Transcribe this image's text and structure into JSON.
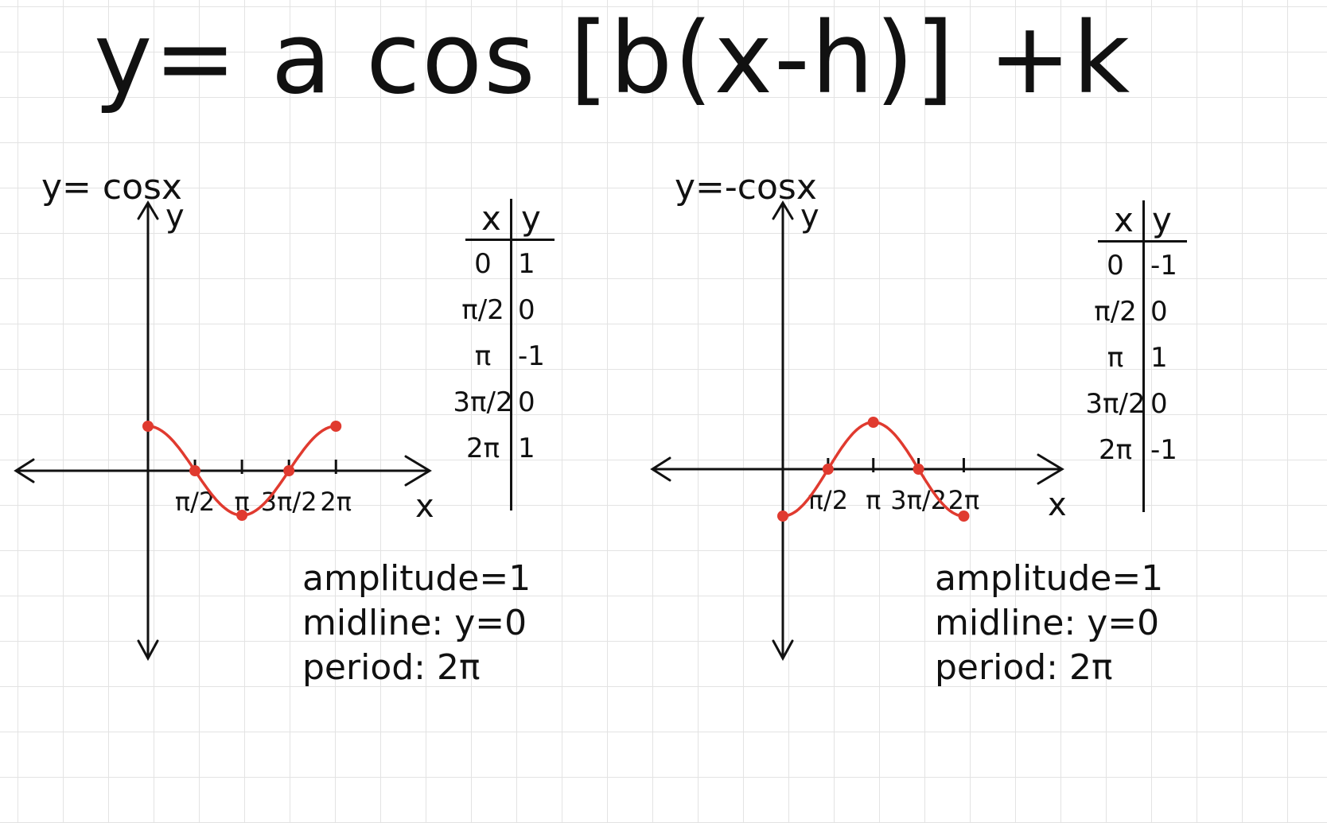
{
  "formula": "y= a cos [b(x-h)] +k",
  "chart_data": [
    {
      "type": "line",
      "title": "y= cosx",
      "xlabel": "x",
      "ylabel": "y",
      "x": [
        0,
        1.5708,
        3.1416,
        4.7124,
        6.2832
      ],
      "x_tick_labels": [
        "π/2",
        "π",
        "3π/2",
        "2π"
      ],
      "series": [
        {
          "values": [
            1,
            0,
            -1,
            0,
            1
          ]
        }
      ],
      "table": {
        "headers": [
          "x",
          "y"
        ],
        "rows": [
          [
            "0",
            "1"
          ],
          [
            "π/2",
            "0"
          ],
          [
            "π",
            "-1"
          ],
          [
            "3π/2",
            "0"
          ],
          [
            "2π",
            "1"
          ]
        ]
      },
      "notes": [
        "amplitude=1",
        "midline: y=0",
        "period: 2π"
      ],
      "line_color": "#e03a2f",
      "grid": true
    },
    {
      "type": "line",
      "title": "y=-cosx",
      "xlabel": "x",
      "ylabel": "y",
      "x": [
        0,
        1.5708,
        3.1416,
        4.7124,
        6.2832
      ],
      "x_tick_labels": [
        "π/2",
        "π",
        "3π/2",
        "2π"
      ],
      "series": [
        {
          "values": [
            -1,
            0,
            1,
            0,
            -1
          ]
        }
      ],
      "table": {
        "headers": [
          "x",
          "y"
        ],
        "rows": [
          [
            "0",
            "-1"
          ],
          [
            "π/2",
            "0"
          ],
          [
            "π",
            "1"
          ],
          [
            "3π/2",
            "0"
          ],
          [
            "2π",
            "-1"
          ]
        ]
      },
      "notes": [
        "amplitude=1",
        "midline: y=0",
        "period: 2π"
      ],
      "line_color": "#e03a2f",
      "grid": true
    }
  ]
}
